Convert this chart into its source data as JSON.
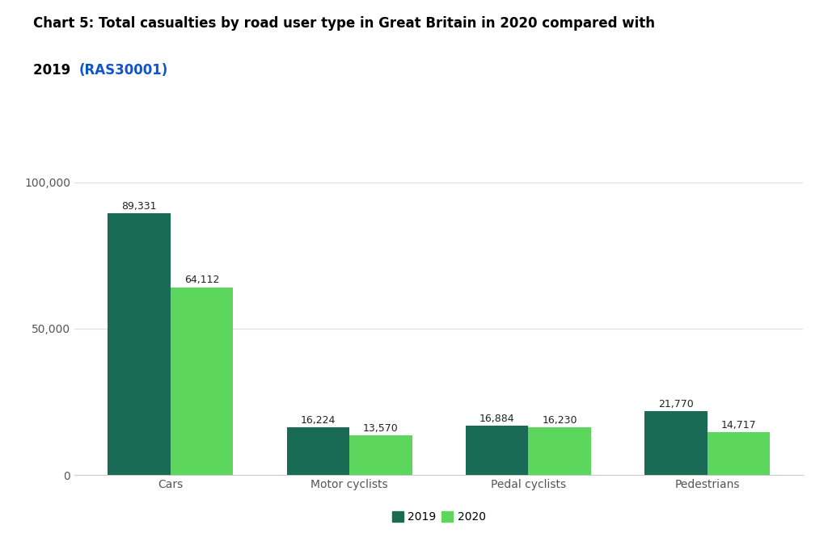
{
  "title_line1": "Chart 5: Total casualties by road user type in Great Britain in 2020 compared with",
  "title_line2": "2019 ",
  "title_link": "(RAS30001)",
  "title_link_color": "#1155CC",
  "categories": [
    "Cars",
    "Motor cyclists",
    "Pedal cyclists",
    "Pedestrians"
  ],
  "values_2019": [
    89331,
    16224,
    16884,
    21770
  ],
  "values_2020": [
    64112,
    13570,
    16230,
    14717
  ],
  "color_2019": "#1a6b55",
  "color_2020": "#5cd65c",
  "yticks": [
    0,
    50000,
    100000
  ],
  "ytick_labels": [
    "0",
    "50,000",
    "100,000"
  ],
  "ylim": [
    0,
    110000
  ],
  "background_color": "#ffffff",
  "legend_labels": [
    "2019",
    "2020"
  ],
  "bar_width": 0.35,
  "label_fontsize": 9,
  "title_fontsize": 12,
  "axis_label_color": "#555555",
  "value_label_color": "#222222"
}
